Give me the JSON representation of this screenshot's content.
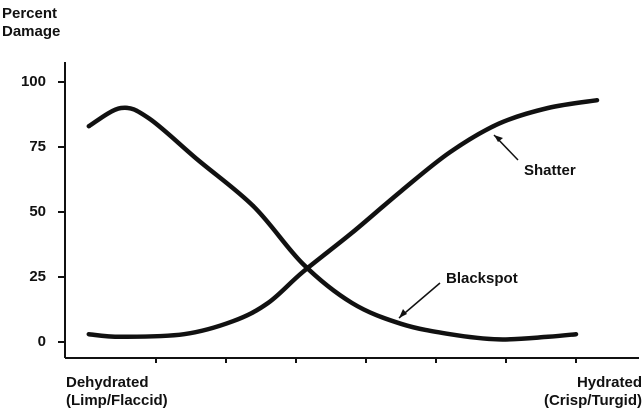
{
  "chart_data": {
    "type": "line",
    "ylabel": [
      "Percent",
      "Damage"
    ],
    "x_min_label": [
      "Dehydrated",
      "(Limp/Flaccid)"
    ],
    "x_max_label": [
      "Hydrated",
      "(Crisp/Turgid)"
    ],
    "annotations": [
      "Shatter",
      "Blackspot"
    ],
    "xlim": [
      -0.3,
      7.9
    ],
    "xticks": [
      1,
      2,
      3,
      4,
      5,
      6,
      7
    ],
    "ylim": [
      0,
      100
    ],
    "yticks": [
      0,
      25,
      50,
      75,
      100
    ],
    "series": [
      {
        "name": "Blackspot",
        "color": "#111111",
        "x": [
          0.04,
          0.5,
          0.9,
          1.6,
          2.4,
          3.1,
          3.8,
          4.5,
          5.2,
          5.9,
          6.6,
          7.0
        ],
        "values": [
          83,
          90,
          86,
          70,
          52,
          30,
          15,
          7,
          3,
          1,
          2,
          3
        ]
      },
      {
        "name": "Shatter",
        "color": "#111111",
        "x": [
          0.04,
          0.5,
          1.4,
          2.1,
          2.6,
          3.1,
          3.8,
          4.5,
          5.2,
          5.9,
          6.6,
          7.3
        ],
        "values": [
          3,
          2,
          3,
          8,
          15,
          27,
          42,
          58,
          73,
          84,
          90,
          93
        ]
      }
    ]
  }
}
